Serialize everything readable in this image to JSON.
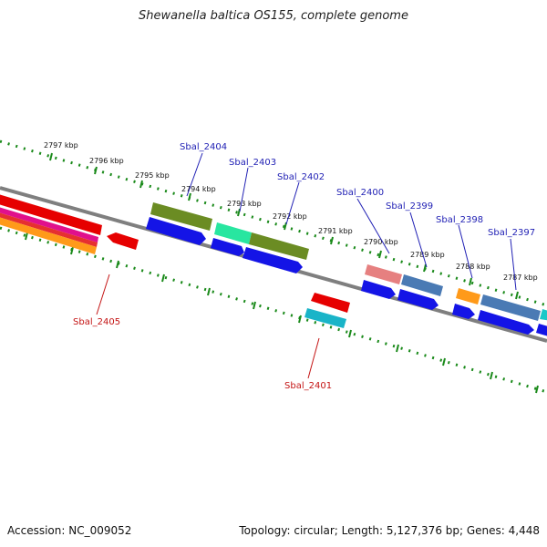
{
  "title": "Shewanella baltica OS155, complete genome",
  "footer": {
    "accession": "Accession: NC_009052",
    "summary": "Topology: circular; Length: 5,127,376 bp; Genes: 4,448"
  },
  "ticks": [
    "2797 kbp",
    "2796 kbp",
    "2795 kbp",
    "2794 kbp",
    "2793 kbp",
    "2792 kbp",
    "2791 kbp",
    "2790 kbp",
    "2789 kbp",
    "2788 kbp",
    "2787 kbp"
  ],
  "gene_labels": {
    "forward": [
      "Sbal_2404",
      "Sbal_2403",
      "Sbal_2402",
      "Sbal_2400",
      "Sbal_2399",
      "Sbal_2398",
      "Sbal_2397"
    ],
    "reverse": [
      "Sbal_2405",
      "Sbal_2401"
    ]
  },
  "colors": {
    "backbone": "#7f7f7f",
    "tick_dots": "#1a8a1a",
    "forward_label": "#1f1fb4",
    "reverse_label": "#c41414",
    "cds_forward": "#1414e6",
    "cds_reverse": "#e61414"
  }
}
